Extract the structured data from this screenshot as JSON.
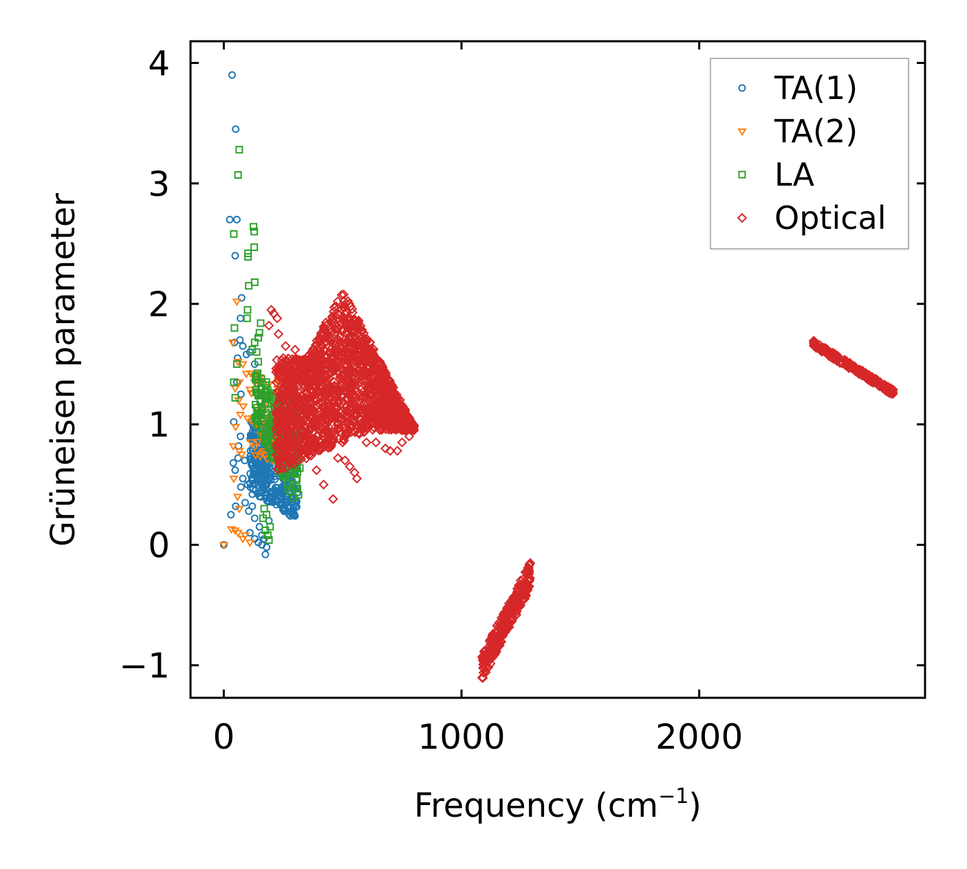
{
  "chart_data": {
    "type": "scatter",
    "xlabel": "Frequency (cm",
    "xlabel_superscript": "−1",
    "xlabel_close": ")",
    "ylabel": "Grüneisen parameter",
    "xlim": [
      -140,
      2950
    ],
    "ylim": [
      -1.27,
      4.18
    ],
    "x_ticks": [
      {
        "value": 0,
        "label": "0"
      },
      {
        "value": 1000,
        "label": "1000"
      },
      {
        "value": 2000,
        "label": "2000"
      }
    ],
    "y_ticks": [
      {
        "value": -1,
        "label": "−1"
      },
      {
        "value": 0,
        "label": "0"
      },
      {
        "value": 1,
        "label": "1"
      },
      {
        "value": 2,
        "label": "2"
      },
      {
        "value": 3,
        "label": "3"
      },
      {
        "value": 4,
        "label": "4"
      }
    ],
    "legend_position": "top-right",
    "series": [
      {
        "name": "TA(1)",
        "marker": "circle",
        "color": "#1f77b4",
        "points": [
          [
            0,
            0
          ],
          [
            35,
            3.9
          ],
          [
            50,
            3.45
          ],
          [
            25,
            2.7
          ],
          [
            55,
            2.7
          ],
          [
            48,
            2.4
          ],
          [
            75,
            2.05
          ],
          [
            70,
            1.88
          ],
          [
            68,
            1.7
          ],
          [
            80,
            1.65
          ],
          [
            45,
            1.68
          ],
          [
            58,
            1.55
          ],
          [
            95,
            1.58
          ],
          [
            110,
            1.6
          ],
          [
            130,
            1.5
          ],
          [
            55,
            1.35
          ],
          [
            72,
            1.25
          ],
          [
            42,
            1.02
          ],
          [
            70,
            0.9
          ],
          [
            62,
            0.82
          ],
          [
            60,
            0.72
          ],
          [
            88,
            0.7
          ],
          [
            40,
            0.68
          ],
          [
            48,
            0.62
          ],
          [
            80,
            0.55
          ],
          [
            100,
            0.5
          ],
          [
            72,
            0.48
          ],
          [
            120,
            0.42
          ],
          [
            90,
            0.35
          ],
          [
            50,
            0.32
          ],
          [
            30,
            0.25
          ],
          [
            105,
            0.28
          ],
          [
            130,
            0.22
          ],
          [
            150,
            0.15
          ],
          [
            160,
            0.08
          ],
          [
            170,
            0.05
          ],
          [
            145,
            0.02
          ],
          [
            180,
            -0.02
          ],
          [
            175,
            -0.08
          ],
          [
            110,
            0.1
          ],
          [
            130,
            0.05
          ],
          [
            160,
            0.0
          ],
          [
            190,
            0.2
          ],
          [
            120,
            0.32
          ],
          [
            140,
            1.25
          ],
          [
            160,
            1.1
          ],
          [
            200,
            1.0
          ]
        ],
        "cluster": {
          "x_min": 110,
          "x_max": 310,
          "y_bottom_at_min": 0.45,
          "y_top_at_min": 1.05,
          "y_bottom_at_max": 0.2,
          "y_top_at_max": 0.95,
          "count": 420
        }
      },
      {
        "name": "TA(2)",
        "marker": "triangle-down",
        "color": "#ff7f0e",
        "points": [
          [
            0,
            0
          ],
          [
            55,
            2.02
          ],
          [
            38,
            1.68
          ],
          [
            60,
            1.52
          ],
          [
            80,
            1.5
          ],
          [
            95,
            1.42
          ],
          [
            65,
            1.35
          ],
          [
            48,
            1.3
          ],
          [
            62,
            1.2
          ],
          [
            82,
            1.15
          ],
          [
            70,
            1.08
          ],
          [
            100,
            1.05
          ],
          [
            50,
            0.98
          ],
          [
            40,
            0.82
          ],
          [
            65,
            0.78
          ],
          [
            75,
            0.75
          ],
          [
            42,
            0.55
          ],
          [
            58,
            0.4
          ],
          [
            65,
            0.3
          ],
          [
            32,
            0.13
          ],
          [
            48,
            0.12
          ],
          [
            60,
            0.1
          ],
          [
            80,
            0.05
          ],
          [
            110,
            0.02
          ],
          [
            90,
            0.08
          ]
        ],
        "cluster": {
          "x_min": 110,
          "x_max": 300,
          "y_bottom_at_min": 0.7,
          "y_top_at_min": 1.45,
          "y_bottom_at_max": 0.7,
          "y_top_at_max": 1.35,
          "count": 110
        }
      },
      {
        "name": "LA",
        "marker": "square",
        "color": "#2ca02c",
        "points": [
          [
            65,
            3.28
          ],
          [
            60,
            3.07
          ],
          [
            125,
            2.64
          ],
          [
            128,
            2.6
          ],
          [
            42,
            2.58
          ],
          [
            128,
            2.47
          ],
          [
            102,
            2.42
          ],
          [
            102,
            2.39
          ],
          [
            130,
            2.18
          ],
          [
            105,
            2.15
          ],
          [
            100,
            1.95
          ],
          [
            98,
            1.88
          ],
          [
            45,
            1.8
          ],
          [
            155,
            1.84
          ],
          [
            150,
            1.76
          ],
          [
            145,
            1.72
          ],
          [
            130,
            1.68
          ],
          [
            120,
            1.62
          ],
          [
            138,
            1.6
          ],
          [
            55,
            1.5
          ],
          [
            145,
            1.52
          ],
          [
            42,
            1.35
          ],
          [
            48,
            1.22
          ],
          [
            175,
            0.12
          ],
          [
            185,
            0.08
          ],
          [
            190,
            0.04
          ],
          [
            195,
            0.15
          ],
          [
            165,
            0.22
          ],
          [
            170,
            0.3
          ],
          [
            180,
            0.25
          ]
        ],
        "cluster": {
          "x_min": 130,
          "x_max": 320,
          "y_bottom_at_min": 1.0,
          "y_top_at_min": 1.45,
          "y_bottom_at_max": 0.28,
          "y_top_at_max": 1.1,
          "count": 200
        }
      },
      {
        "name": "Optical",
        "marker": "diamond",
        "color": "#d62728",
        "points": [
          [
            200,
            1.95
          ],
          [
            210,
            1.92
          ],
          [
            225,
            1.88
          ],
          [
            190,
            1.82
          ],
          [
            230,
            1.75
          ],
          [
            260,
            1.65
          ],
          [
            300,
            1.62
          ],
          [
            250,
            1.55
          ],
          [
            340,
            0.88
          ],
          [
            360,
            0.78
          ],
          [
            390,
            0.62
          ],
          [
            420,
            0.5
          ],
          [
            460,
            0.38
          ],
          [
            480,
            0.72
          ],
          [
            500,
            0.85
          ],
          [
            510,
            0.7
          ],
          [
            530,
            0.65
          ],
          [
            550,
            0.6
          ],
          [
            560,
            0.55
          ],
          [
            570,
            0.92
          ],
          [
            600,
            0.85
          ],
          [
            640,
            0.85
          ],
          [
            680,
            0.8
          ],
          [
            700,
            0.78
          ],
          [
            730,
            0.78
          ],
          [
            750,
            0.85
          ],
          [
            780,
            0.9
          ],
          [
            800,
            0.95
          ]
        ],
        "clusters": [
          {
            "x_min": 220,
            "x_max": 800,
            "y_bottom_at_min": 0.6,
            "y_top_at_min": 1.55,
            "y_peak_x": 500,
            "y_peak": 2.12,
            "count": 1700
          },
          {
            "x_min": 1085,
            "x_max": 1290,
            "y_at_min": -1.02,
            "y_at_max": -0.25,
            "width": 0.22,
            "count": 260
          },
          {
            "x_min": 2480,
            "x_max": 2820,
            "y_at_min": 1.67,
            "y_at_max": 1.26,
            "width": 0.05,
            "count": 220
          }
        ]
      }
    ]
  }
}
